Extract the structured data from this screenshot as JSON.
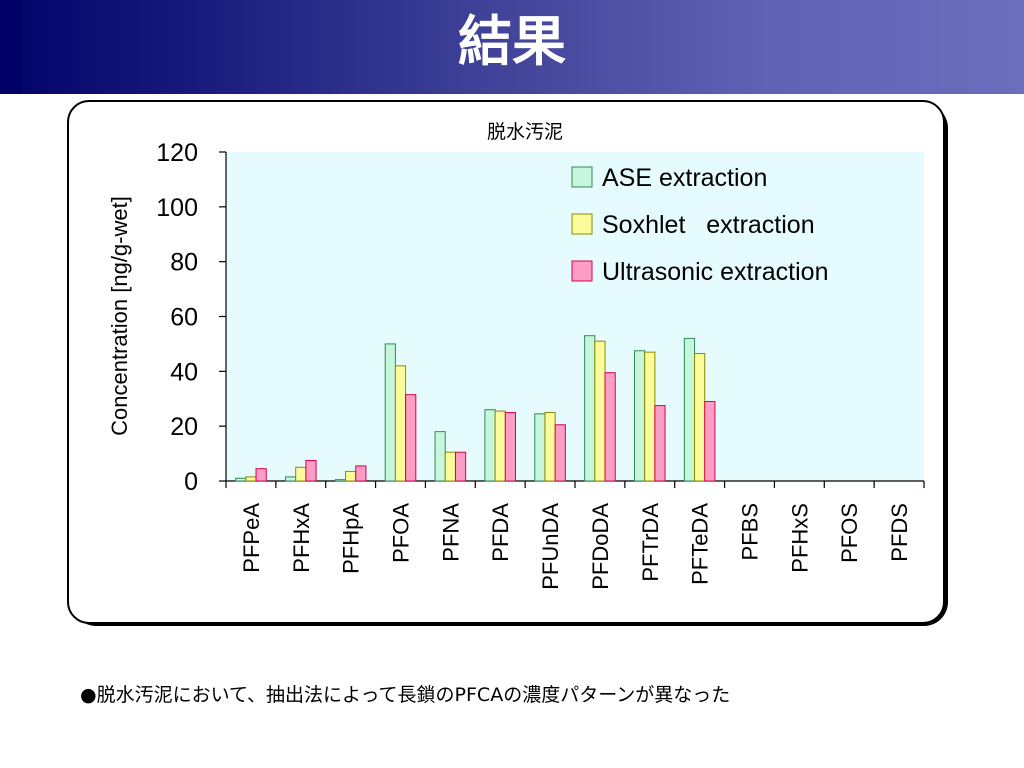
{
  "slide": {
    "title": "結果",
    "caption": "●脱水汚泥において、抽出法によって長鎖のPFCAの濃度パターンが異なった"
  },
  "chart_data": {
    "type": "bar",
    "title": "脱水汚泥",
    "xlabel": "",
    "ylabel": "Concentration [ng/g-wet]",
    "ylim": [
      0,
      120
    ],
    "yticks": [
      0,
      20,
      40,
      60,
      80,
      100,
      120
    ],
    "grid": false,
    "legend_position": "top-right",
    "plot_background": "#e6fbfd",
    "categories": [
      "PFPeA",
      "PFHxA",
      "PFHpA",
      "PFOA",
      "PFNA",
      "PFDA",
      "PFUnDA",
      "PFDoDA",
      "PFTrDA",
      "PFTeDA",
      "PFBS",
      "PFHxS",
      "PFOS",
      "PFDS"
    ],
    "series": [
      {
        "name": "ASE extraction",
        "color": "#c6f7dc",
        "values": [
          1,
          1.5,
          0.5,
          50,
          18,
          26,
          24.5,
          53,
          47.5,
          52,
          0,
          0,
          0,
          0
        ]
      },
      {
        "name": "Soxhlet   extraction",
        "color": "#fbfb9c",
        "values": [
          1.5,
          5,
          3.5,
          42,
          10.5,
          25.5,
          25,
          51,
          47,
          46.5,
          0,
          0,
          0,
          0
        ]
      },
      {
        "name": "Ultrasonic extraction",
        "color": "#fb9dc4",
        "values": [
          4.5,
          7.5,
          5.5,
          31.5,
          10.5,
          25,
          20.5,
          39.5,
          27.5,
          29,
          0,
          0,
          0,
          0
        ]
      }
    ]
  }
}
